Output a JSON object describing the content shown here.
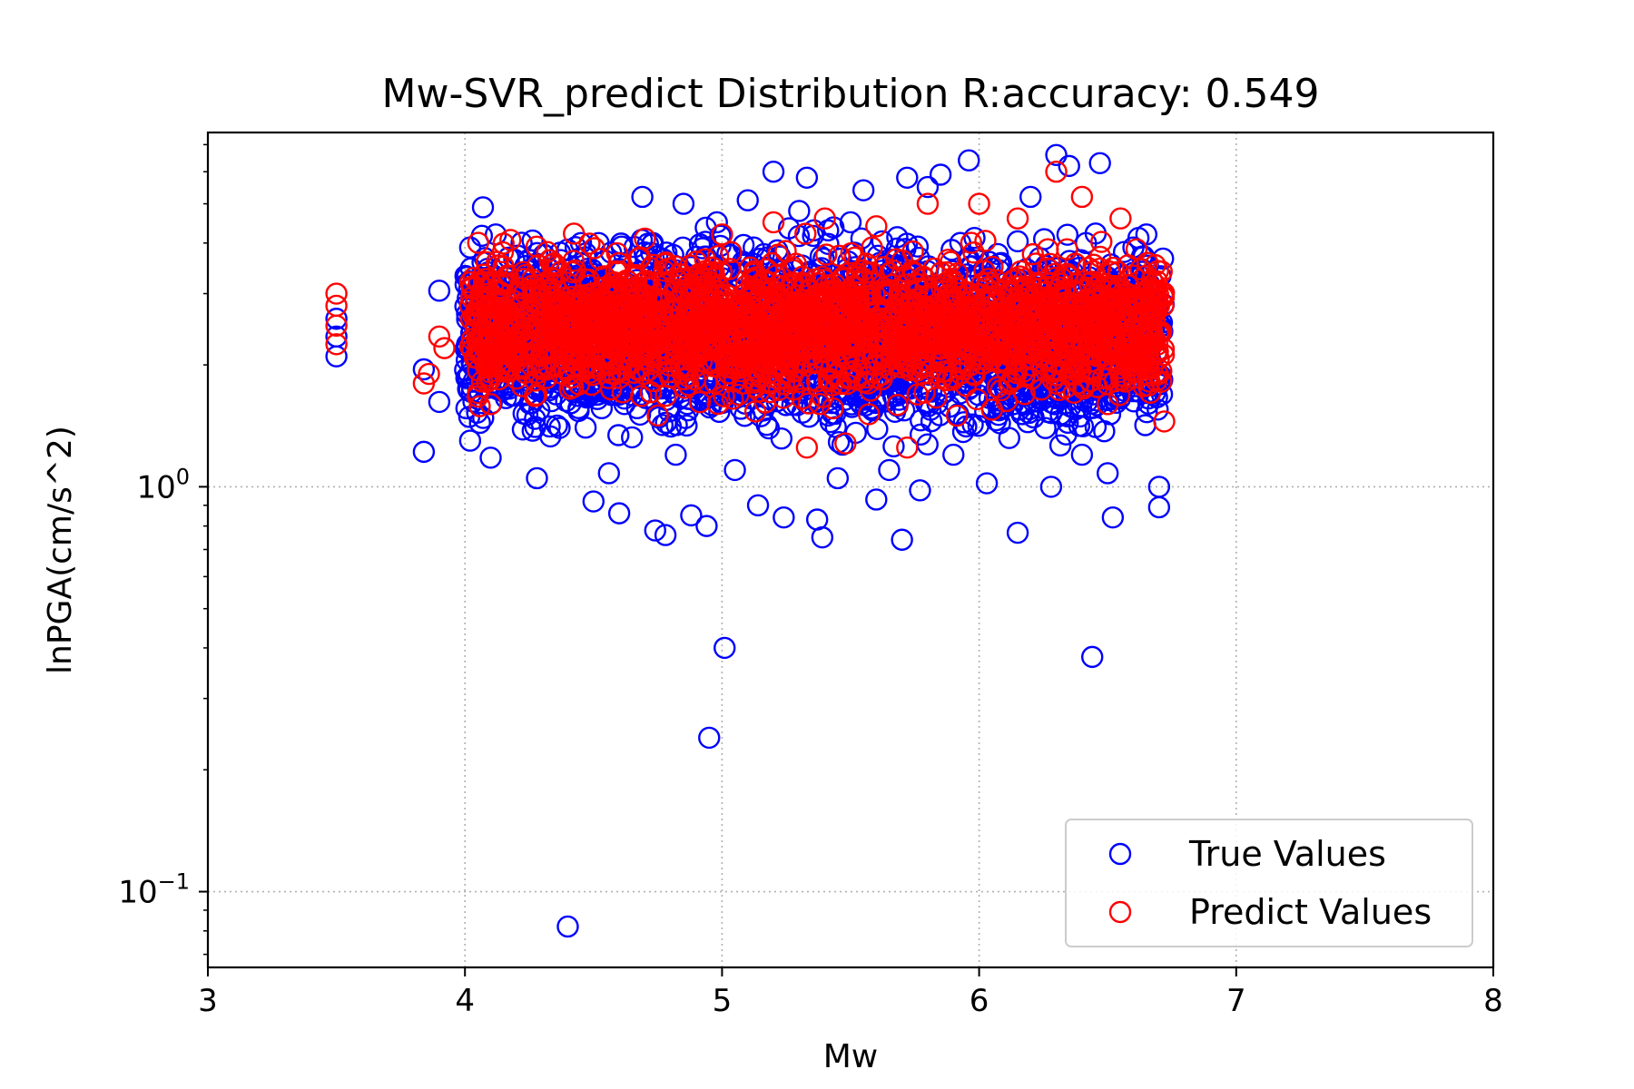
{
  "chart_data": {
    "type": "scatter",
    "title": "Mw-SVR_predict Distribution R:accuracy: 0.549",
    "xlabel": "Mw",
    "ylabel": "lnPGA(cm/s^2)",
    "xlim": [
      3,
      8
    ],
    "ylim": [
      0.065,
      7.5
    ],
    "yscale": "log",
    "grid": true,
    "legend_position": "bottom-right",
    "x_ticks": [
      "3",
      "4",
      "5",
      "6",
      "7",
      "8"
    ],
    "y_ticks": [
      {
        "base": "10",
        "exp": "0",
        "value": 1
      },
      {
        "base": "10",
        "exp": "−1",
        "value": 0.1
      }
    ],
    "series": [
      {
        "name": "True Values",
        "color": "#0000ff",
        "marker": "open-circle",
        "points": [
          [
            3.5,
            2.1
          ],
          [
            3.5,
            2.35
          ],
          [
            3.5,
            2.6
          ],
          [
            3.84,
            1.22
          ],
          [
            3.84,
            1.95
          ],
          [
            3.9,
            3.05
          ],
          [
            3.9,
            1.62
          ],
          [
            4.02,
            1.3
          ],
          [
            4.02,
            3.9
          ],
          [
            4.07,
            4.9
          ],
          [
            4.1,
            1.18
          ],
          [
            4.12,
            4.2
          ],
          [
            4.18,
            2.2
          ],
          [
            4.22,
            3.3
          ],
          [
            4.28,
            1.05
          ],
          [
            4.3,
            3.0
          ],
          [
            4.4,
            0.082
          ],
          [
            4.45,
            2.0
          ],
          [
            4.5,
            0.92
          ],
          [
            4.52,
            4.0
          ],
          [
            4.56,
            1.08
          ],
          [
            4.6,
            0.86
          ],
          [
            4.65,
            2.5
          ],
          [
            4.69,
            5.2
          ],
          [
            4.74,
            0.78
          ],
          [
            4.78,
            0.76
          ],
          [
            4.82,
            1.2
          ],
          [
            4.85,
            5.0
          ],
          [
            4.88,
            0.85
          ],
          [
            4.9,
            3.7
          ],
          [
            4.94,
            0.8
          ],
          [
            4.95,
            0.24
          ],
          [
            4.98,
            4.5
          ],
          [
            5.01,
            0.4
          ],
          [
            5.05,
            1.1
          ],
          [
            5.1,
            5.1
          ],
          [
            5.14,
            0.9
          ],
          [
            5.2,
            6.0
          ],
          [
            5.24,
            0.84
          ],
          [
            5.3,
            4.8
          ],
          [
            5.33,
            5.8
          ],
          [
            5.37,
            0.83
          ],
          [
            5.39,
            0.75
          ],
          [
            5.45,
            1.05
          ],
          [
            5.5,
            4.5
          ],
          [
            5.55,
            5.4
          ],
          [
            5.6,
            0.93
          ],
          [
            5.65,
            1.1
          ],
          [
            5.7,
            0.74
          ],
          [
            5.72,
            5.8
          ],
          [
            5.77,
            0.98
          ],
          [
            5.8,
            5.5
          ],
          [
            5.85,
            5.9
          ],
          [
            5.9,
            1.2
          ],
          [
            5.96,
            6.4
          ],
          [
            6.03,
            1.02
          ],
          [
            6.1,
            2.0
          ],
          [
            6.15,
            0.77
          ],
          [
            6.2,
            5.2
          ],
          [
            6.28,
            1.0
          ],
          [
            6.3,
            6.6
          ],
          [
            6.35,
            6.2
          ],
          [
            6.4,
            1.2
          ],
          [
            6.44,
            0.38
          ],
          [
            6.47,
            6.3
          ],
          [
            6.5,
            1.08
          ],
          [
            6.52,
            0.84
          ],
          [
            6.6,
            3.9
          ],
          [
            6.65,
            2.2
          ],
          [
            6.68,
            3.0
          ],
          [
            6.7,
            0.89
          ],
          [
            6.7,
            1.0
          ]
        ],
        "density_band": {
          "x": [
            4.0,
            6.72
          ],
          "y": [
            1.15,
            4.8
          ]
        }
      },
      {
        "name": "Predict Values",
        "color": "#ff0000",
        "marker": "open-circle",
        "points": [
          [
            3.5,
            3.0
          ],
          [
            3.5,
            2.8
          ],
          [
            3.5,
            2.5
          ],
          [
            3.5,
            2.25
          ],
          [
            3.84,
            1.8
          ],
          [
            3.86,
            1.9
          ],
          [
            3.9,
            2.35
          ],
          [
            3.92,
            2.2
          ],
          [
            4.02,
            2.8
          ],
          [
            4.1,
            1.6
          ],
          [
            4.15,
            3.5
          ],
          [
            4.32,
            3.8
          ],
          [
            4.32,
            3.15
          ],
          [
            4.5,
            2.3
          ],
          [
            4.6,
            3.4
          ],
          [
            4.7,
            4.1
          ],
          [
            4.75,
            1.5
          ],
          [
            4.9,
            3.6
          ],
          [
            5.0,
            4.2
          ],
          [
            5.2,
            4.5
          ],
          [
            5.33,
            1.25
          ],
          [
            5.4,
            4.6
          ],
          [
            5.48,
            1.28
          ],
          [
            5.6,
            4.4
          ],
          [
            5.72,
            1.25
          ],
          [
            5.8,
            5.0
          ],
          [
            6.0,
            5.0
          ],
          [
            6.05,
            1.55
          ],
          [
            6.15,
            4.6
          ],
          [
            6.3,
            6.0
          ],
          [
            6.4,
            5.2
          ],
          [
            6.5,
            1.6
          ],
          [
            6.55,
            4.6
          ],
          [
            6.7,
            2.8
          ],
          [
            6.72,
            1.45
          ]
        ],
        "density_band": {
          "x": [
            4.02,
            6.72
          ],
          "y": [
            1.45,
            4.3
          ]
        }
      }
    ]
  }
}
